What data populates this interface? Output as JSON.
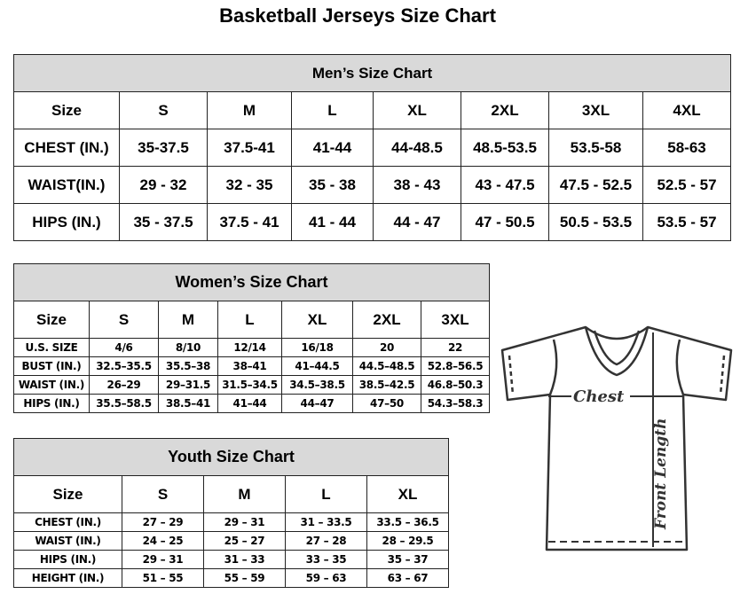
{
  "title": "Basketball Jerseys Size Chart",
  "men": {
    "heading": "Men’s Size Chart",
    "sizes": [
      "Size",
      "S",
      "M",
      "L",
      "XL",
      "2XL",
      "3XL",
      "4XL"
    ],
    "rows": [
      [
        "CHEST (IN.)",
        "35-37.5",
        "37.5-41",
        "41-44",
        "44-48.5",
        "48.5-53.5",
        "53.5-58",
        "58-63"
      ],
      [
        "WAIST(IN.)",
        "29 - 32",
        "32 - 35",
        "35 - 38",
        "38 - 43",
        "43 - 47.5",
        "47.5 - 52.5",
        "52.5 - 57"
      ],
      [
        "HIPS (IN.)",
        "35 - 37.5",
        "37.5 - 41",
        "41 - 44",
        "44 - 47",
        "47 - 50.5",
        "50.5 - 53.5",
        "53.5 - 57"
      ]
    ]
  },
  "women": {
    "heading": "Women’s Size Chart",
    "sizes": [
      "Size",
      "S",
      "M",
      "L",
      "XL",
      "2XL",
      "3XL"
    ],
    "rows": [
      [
        "U.S. SIZE",
        "4/6",
        "8/10",
        "12/14",
        "16/18",
        "20",
        "22"
      ],
      [
        "BUST (IN.)",
        "32.5–35.5",
        "35.5–38",
        "38–41",
        "41–44.5",
        "44.5–48.5",
        "52.8–56.5"
      ],
      [
        "WAIST (IN.)",
        "26–29",
        "29–31.5",
        "31.5–34.5",
        "34.5–38.5",
        "38.5–42.5",
        "46.8–50.3"
      ],
      [
        "HIPS (IN.)",
        "35.5–58.5",
        "38.5–41",
        "41–44",
        "44–47",
        "47–50",
        "54.3–58.3"
      ]
    ]
  },
  "youth": {
    "heading": "Youth Size Chart",
    "sizes": [
      "Size",
      "S",
      "M",
      "L",
      "XL"
    ],
    "rows": [
      [
        "CHEST (IN.)",
        "27 – 29",
        "29 – 31",
        "31 – 33.5",
        "33.5 – 36.5"
      ],
      [
        "WAIST (IN.)",
        "24 – 25",
        "25 – 27",
        "27 – 28",
        "28 – 29.5"
      ],
      [
        "HIPS (IN.)",
        "29 – 31",
        "31 – 33",
        "33 – 35",
        "35 – 37"
      ],
      [
        "HEIGHT (IN.)",
        "51 – 55",
        "55 – 59",
        "59 – 63",
        "63 – 67"
      ]
    ]
  },
  "diagram": {
    "chest_label": "Chest",
    "length_label": "Front Length"
  }
}
